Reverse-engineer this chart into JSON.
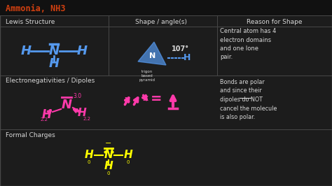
{
  "bg_color": "#1c1c1c",
  "bg_inner": "#252525",
  "title_text": "Ammonia, NH3",
  "title_color": "#d04010",
  "border_color": "#484848",
  "white_text": "#d8d8d8",
  "pink_color": "#ff3aaa",
  "yellow_color": "#ffff00",
  "blue_color": "#5599ee",
  "cyan_color": "#5599ee",
  "handwrite_color": "#ffffff",
  "reason_color": "#aaccff",
  "col1_header": "Lewis Structure",
  "col2_header": "Shape / angle(s)",
  "col3_header": "Reason for Shape",
  "row2_header": "Electronegativities / Dipoles",
  "row3_header": "Formal Charges",
  "reason_text": "Central atom has 4\nelectron domains\nand one lone\npair.",
  "dipole_text": "Bonds are polar\nand since their\ndipoles do NOT\ncancel the molecule\nis also polar.",
  "figw": 4.74,
  "figh": 2.66,
  "dpi": 100
}
